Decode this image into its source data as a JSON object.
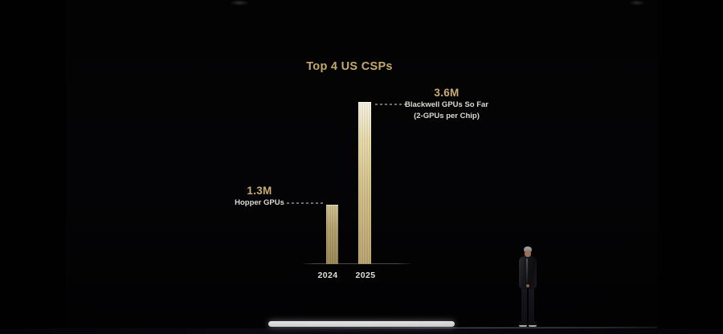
{
  "chart_data": {
    "type": "bar",
    "title": "Top 4 US CSPs",
    "categories": [
      "2024",
      "2025"
    ],
    "values": [
      1.3,
      3.6
    ],
    "ylim": [
      0,
      3.6
    ],
    "grid": false,
    "legend": false,
    "annotations": [
      {
        "value_label": "1.3M",
        "label": "Hopper GPUs"
      },
      {
        "value_label": "3.6M",
        "label": "Blackwell GPUs So Far",
        "sublabel": "(2-GPUs per Chip)"
      }
    ]
  },
  "colors": {
    "background": "#010101",
    "gold_text": "#c4a96d",
    "white_text": "#e6e3dc",
    "bar_2024_top": "#d2c392",
    "bar_2024_bottom": "#9d8956",
    "bar_2025_top": "#faf6e6",
    "bar_2025_bottom": "#bda671",
    "baseline": "#8c8573",
    "stage_light_bar": "#ffffff"
  }
}
